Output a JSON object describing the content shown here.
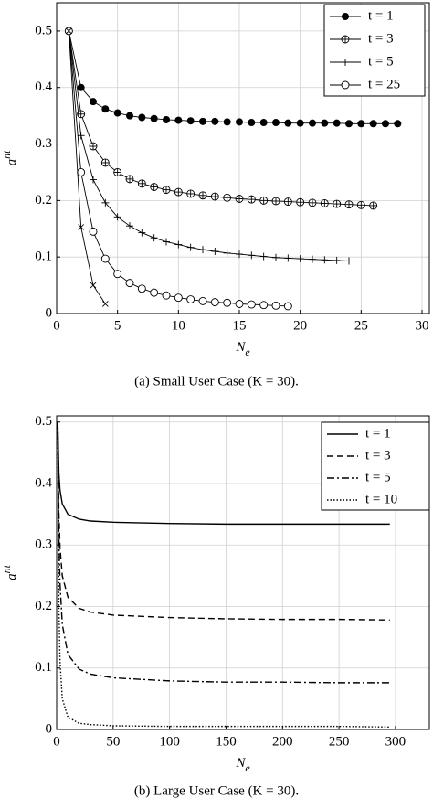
{
  "chart_data": [
    {
      "type": "line",
      "xlim": [
        0,
        30.6
      ],
      "ylim": [
        0,
        0.55
      ],
      "xticks": [
        0,
        5,
        10,
        15,
        20,
        25,
        30
      ],
      "yticks": [
        0,
        0.1,
        0.2,
        0.3,
        0.4,
        0.5
      ],
      "grid": true,
      "xlabel_base": "N",
      "xlabel_sub": "e",
      "ylabel_base": "a",
      "ylabel_sup": "nt",
      "legend": "upper right",
      "caption": "(a) Small User Case (K = 30).",
      "series": [
        {
          "name": "t = 1",
          "color": "#000000",
          "marker": "filled-circle",
          "x": [
            1,
            2,
            3,
            4,
            5,
            6,
            7,
            8,
            9,
            10,
            11,
            12,
            13,
            14,
            15,
            16,
            17,
            18,
            19,
            20,
            21,
            22,
            23,
            24,
            25,
            26,
            27,
            28
          ],
          "values": [
            0.5,
            0.4,
            0.375,
            0.362,
            0.355,
            0.35,
            0.347,
            0.345,
            0.343,
            0.342,
            0.341,
            0.34,
            0.34,
            0.339,
            0.339,
            0.338,
            0.338,
            0.338,
            0.337,
            0.337,
            0.337,
            0.337,
            0.337,
            0.336,
            0.336,
            0.336,
            0.336,
            0.336
          ]
        },
        {
          "name": "t = 3",
          "color": "#000000",
          "marker": "circle-plus",
          "x": [
            1,
            2,
            3,
            4,
            5,
            6,
            7,
            8,
            9,
            10,
            11,
            12,
            13,
            14,
            15,
            16,
            17,
            18,
            19,
            20,
            21,
            22,
            23,
            24,
            25,
            26
          ],
          "values": [
            0.5,
            0.353,
            0.296,
            0.267,
            0.25,
            0.238,
            0.23,
            0.224,
            0.219,
            0.215,
            0.212,
            0.209,
            0.207,
            0.205,
            0.203,
            0.202,
            0.2,
            0.199,
            0.198,
            0.197,
            0.196,
            0.195,
            0.194,
            0.193,
            0.192,
            0.191
          ]
        },
        {
          "name": "t = 5",
          "color": "#000000",
          "marker": "plus",
          "x": [
            1,
            2,
            3,
            4,
            5,
            6,
            7,
            8,
            9,
            10,
            11,
            12,
            13,
            14,
            15,
            16,
            17,
            18,
            19,
            20,
            21,
            22,
            23,
            24
          ],
          "values": [
            0.5,
            0.315,
            0.237,
            0.196,
            0.171,
            0.155,
            0.143,
            0.134,
            0.127,
            0.122,
            0.117,
            0.113,
            0.11,
            0.107,
            0.105,
            0.103,
            0.101,
            0.099,
            0.098,
            0.097,
            0.096,
            0.095,
            0.094,
            0.093
          ]
        },
        {
          "name": "t = 25",
          "color": "#000000",
          "marker": "circle",
          "x": [
            1,
            2,
            3,
            4,
            5,
            6,
            7,
            8,
            9,
            10,
            11,
            12,
            13,
            14,
            15,
            16,
            17,
            18,
            19
          ],
          "values": [
            0.5,
            0.25,
            0.145,
            0.097,
            0.07,
            0.054,
            0.044,
            0.037,
            0.032,
            0.028,
            0.025,
            0.022,
            0.02,
            0.019,
            0.017,
            0.016,
            0.015,
            0.014,
            0.013
          ]
        },
        {
          "color": "#000000",
          "marker": "x",
          "x": [
            1,
            2,
            3,
            4
          ],
          "values": [
            0.5,
            0.153,
            0.05,
            0.017
          ]
        }
      ]
    },
    {
      "type": "line",
      "xlim": [
        0,
        330
      ],
      "ylim": [
        0,
        0.51
      ],
      "xticks": [
        0,
        50,
        100,
        150,
        200,
        250,
        300
      ],
      "yticks": [
        0,
        0.1,
        0.2,
        0.3,
        0.4,
        0.5
      ],
      "grid": true,
      "xlabel_base": "N",
      "xlabel_sub": "e",
      "ylabel_base": "a",
      "ylabel_sup": "nt",
      "legend": "upper right",
      "caption": "(b) Large User Case (K = 30).",
      "x": [
        1,
        2,
        3,
        5,
        10,
        20,
        30,
        50,
        100,
        150,
        200,
        250,
        295
      ],
      "series": [
        {
          "name": "t = 1",
          "color": "#000000",
          "dash": "solid",
          "values": [
            0.5,
            0.417,
            0.389,
            0.367,
            0.35,
            0.342,
            0.339,
            0.337,
            0.335,
            0.334,
            0.334,
            0.334,
            0.334
          ]
        },
        {
          "name": "t = 3",
          "color": "#000000",
          "dash": "dashed",
          "values": [
            0.5,
            0.353,
            0.296,
            0.25,
            0.215,
            0.197,
            0.191,
            0.186,
            0.182,
            0.18,
            0.179,
            0.179,
            0.178
          ]
        },
        {
          "name": "t = 5",
          "color": "#000000",
          "dash": "dashdot",
          "values": [
            0.5,
            0.315,
            0.237,
            0.171,
            0.122,
            0.098,
            0.09,
            0.084,
            0.079,
            0.077,
            0.077,
            0.076,
            0.076
          ]
        },
        {
          "name": "t = 10",
          "color": "#000000",
          "dash": "dotted",
          "values": [
            0.5,
            0.2,
            0.11,
            0.05,
            0.02,
            0.01,
            0.008,
            0.006,
            0.005,
            0.005,
            0.005,
            0.005,
            0.004
          ]
        }
      ]
    }
  ]
}
